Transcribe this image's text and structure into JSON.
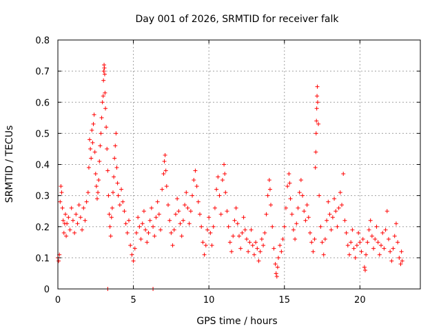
{
  "chart_data": {
    "type": "scatter",
    "title": "Day 001 of 2026, SRMTID for receiver falk",
    "xlabel": "GPS time / hours",
    "ylabel": "SRMTID / TECUs",
    "xlim": [
      0,
      24
    ],
    "ylim": [
      0,
      0.8
    ],
    "xticks": [
      0,
      5,
      10,
      15,
      20
    ],
    "xtick_labels": [
      "0",
      "5",
      "10",
      "15",
      "20"
    ],
    "yticks": [
      0,
      0.1,
      0.2,
      0.3,
      0.4,
      0.5,
      0.6,
      0.7,
      0.8
    ],
    "ytick_labels": [
      "0",
      "0.1",
      "0.2",
      "0.3",
      "0.4",
      "0.5",
      "0.6",
      "0.7",
      "0.8"
    ],
    "grid": true,
    "marker": "+",
    "color": "#ff0000",
    "series": [
      {
        "name": "SRMTID",
        "points": [
          [
            0.0,
            0.1
          ],
          [
            0.05,
            0.09
          ],
          [
            0.1,
            0.11
          ],
          [
            0.15,
            0.28
          ],
          [
            0.2,
            0.33
          ],
          [
            0.25,
            0.31
          ],
          [
            0.3,
            0.26
          ],
          [
            0.35,
            0.22
          ],
          [
            0.4,
            0.18
          ],
          [
            0.45,
            0.21
          ],
          [
            0.5,
            0.24
          ],
          [
            0.55,
            0.17
          ],
          [
            0.6,
            0.21
          ],
          [
            0.7,
            0.23
          ],
          [
            0.8,
            0.19
          ],
          [
            0.9,
            0.26
          ],
          [
            1.0,
            0.22
          ],
          [
            1.1,
            0.18
          ],
          [
            1.2,
            0.24
          ],
          [
            1.3,
            0.21
          ],
          [
            1.4,
            0.27
          ],
          [
            1.5,
            0.23
          ],
          [
            1.6,
            0.19
          ],
          [
            1.7,
            0.26
          ],
          [
            1.8,
            0.22
          ],
          [
            1.9,
            0.28
          ],
          [
            2.0,
            0.31
          ],
          [
            2.05,
            0.39
          ],
          [
            2.1,
            0.48
          ],
          [
            2.15,
            0.45
          ],
          [
            2.2,
            0.42
          ],
          [
            2.25,
            0.51
          ],
          [
            2.3,
            0.47
          ],
          [
            2.35,
            0.53
          ],
          [
            2.4,
            0.56
          ],
          [
            2.45,
            0.44
          ],
          [
            2.5,
            0.37
          ],
          [
            2.55,
            0.33
          ],
          [
            2.6,
            0.29
          ],
          [
            2.65,
            0.31
          ],
          [
            2.7,
            0.35
          ],
          [
            2.75,
            0.41
          ],
          [
            2.8,
            0.46
          ],
          [
            2.85,
            0.5
          ],
          [
            2.9,
            0.55
          ],
          [
            2.95,
            0.6
          ],
          [
            3.0,
            0.62
          ],
          [
            3.02,
            0.67
          ],
          [
            3.04,
            0.7
          ],
          [
            3.06,
            0.72
          ],
          [
            3.08,
            0.71
          ],
          [
            3.1,
            0.69
          ],
          [
            3.12,
            0.63
          ],
          [
            3.15,
            0.58
          ],
          [
            3.2,
            0.52
          ],
          [
            3.25,
            0.45
          ],
          [
            3.3,
            0.38
          ],
          [
            3.35,
            0.3
          ],
          [
            3.4,
            0.24
          ],
          [
            3.45,
            0.2
          ],
          [
            3.5,
            0.17
          ],
          [
            3.55,
            0.23
          ],
          [
            3.6,
            0.26
          ],
          [
            3.65,
            0.31
          ],
          [
            3.7,
            0.36
          ],
          [
            3.75,
            0.42
          ],
          [
            3.8,
            0.46
          ],
          [
            3.85,
            0.5
          ],
          [
            3.9,
            0.39
          ],
          [
            3.95,
            0.34
          ],
          [
            4.0,
            0.3
          ],
          [
            4.1,
            0.27
          ],
          [
            4.2,
            0.32
          ],
          [
            4.3,
            0.28
          ],
          [
            4.4,
            0.25
          ],
          [
            4.5,
            0.21
          ],
          [
            4.6,
            0.18
          ],
          [
            4.7,
            0.22
          ],
          [
            4.8,
            0.14
          ],
          [
            4.9,
            0.11
          ],
          [
            5.0,
            0.09
          ],
          [
            5.1,
            0.13
          ],
          [
            5.2,
            0.18
          ],
          [
            5.3,
            0.23
          ],
          [
            5.4,
            0.2
          ],
          [
            5.5,
            0.16
          ],
          [
            5.6,
            0.21
          ],
          [
            5.7,
            0.25
          ],
          [
            5.8,
            0.19
          ],
          [
            5.9,
            0.15
          ],
          [
            6.0,
            0.18
          ],
          [
            6.1,
            0.22
          ],
          [
            6.2,
            0.26
          ],
          [
            6.3,
            0.2
          ],
          [
            6.4,
            0.17
          ],
          [
            6.5,
            0.23
          ],
          [
            6.6,
            0.28
          ],
          [
            6.7,
            0.24
          ],
          [
            6.8,
            0.19
          ],
          [
            6.9,
            0.32
          ],
          [
            7.0,
            0.37
          ],
          [
            7.05,
            0.41
          ],
          [
            7.1,
            0.43
          ],
          [
            7.15,
            0.38
          ],
          [
            7.2,
            0.33
          ],
          [
            7.3,
            0.27
          ],
          [
            7.4,
            0.22
          ],
          [
            7.5,
            0.18
          ],
          [
            7.6,
            0.14
          ],
          [
            7.7,
            0.19
          ],
          [
            7.8,
            0.24
          ],
          [
            7.9,
            0.29
          ],
          [
            8.0,
            0.25
          ],
          [
            8.1,
            0.21
          ],
          [
            8.2,
            0.17
          ],
          [
            8.3,
            0.22
          ],
          [
            8.4,
            0.27
          ],
          [
            8.5,
            0.31
          ],
          [
            8.6,
            0.26
          ],
          [
            8.7,
            0.21
          ],
          [
            8.8,
            0.25
          ],
          [
            8.9,
            0.3
          ],
          [
            9.0,
            0.35
          ],
          [
            9.1,
            0.38
          ],
          [
            9.2,
            0.33
          ],
          [
            9.3,
            0.28
          ],
          [
            9.4,
            0.24
          ],
          [
            9.5,
            0.2
          ],
          [
            9.6,
            0.15
          ],
          [
            9.7,
            0.11
          ],
          [
            9.8,
            0.14
          ],
          [
            9.9,
            0.19
          ],
          [
            10.0,
            0.23
          ],
          [
            10.1,
            0.18
          ],
          [
            10.2,
            0.14
          ],
          [
            10.3,
            0.2
          ],
          [
            10.4,
            0.26
          ],
          [
            10.5,
            0.32
          ],
          [
            10.6,
            0.36
          ],
          [
            10.7,
            0.3
          ],
          [
            10.8,
            0.24
          ],
          [
            10.9,
            0.35
          ],
          [
            11.0,
            0.4
          ],
          [
            11.05,
            0.37
          ],
          [
            11.1,
            0.31
          ],
          [
            11.2,
            0.25
          ],
          [
            11.3,
            0.2
          ],
          [
            11.4,
            0.15
          ],
          [
            11.5,
            0.12
          ],
          [
            11.6,
            0.17
          ],
          [
            11.7,
            0.22
          ],
          [
            11.8,
            0.26
          ],
          [
            11.9,
            0.21
          ],
          [
            12.0,
            0.17
          ],
          [
            12.1,
            0.13
          ],
          [
            12.2,
            0.18
          ],
          [
            12.3,
            0.23
          ],
          [
            12.4,
            0.19
          ],
          [
            12.5,
            0.16
          ],
          [
            12.6,
            0.12
          ],
          [
            12.7,
            0.15
          ],
          [
            12.8,
            0.19
          ],
          [
            12.9,
            0.14
          ],
          [
            13.0,
            0.11
          ],
          [
            13.1,
            0.15
          ],
          [
            13.2,
            0.13
          ],
          [
            13.3,
            0.09
          ],
          [
            13.4,
            0.12
          ],
          [
            13.5,
            0.16
          ],
          [
            13.6,
            0.14
          ],
          [
            13.7,
            0.18
          ],
          [
            13.8,
            0.24
          ],
          [
            13.9,
            0.3
          ],
          [
            14.0,
            0.35
          ],
          [
            14.05,
            0.32
          ],
          [
            14.1,
            0.27
          ],
          [
            14.2,
            0.2
          ],
          [
            14.3,
            0.13
          ],
          [
            14.4,
            0.08
          ],
          [
            14.45,
            0.05
          ],
          [
            14.5,
            0.04
          ],
          [
            14.55,
            0.07
          ],
          [
            14.6,
            0.1
          ],
          [
            14.7,
            0.14
          ],
          [
            14.8,
            0.12
          ],
          [
            14.9,
            0.16
          ],
          [
            15.0,
            0.2
          ],
          [
            15.1,
            0.26
          ],
          [
            15.2,
            0.33
          ],
          [
            15.3,
            0.37
          ],
          [
            15.35,
            0.34
          ],
          [
            15.4,
            0.29
          ],
          [
            15.5,
            0.24
          ],
          [
            15.6,
            0.19
          ],
          [
            15.7,
            0.16
          ],
          [
            15.8,
            0.21
          ],
          [
            15.9,
            0.26
          ],
          [
            16.0,
            0.31
          ],
          [
            16.1,
            0.35
          ],
          [
            16.2,
            0.3
          ],
          [
            16.3,
            0.25
          ],
          [
            16.4,
            0.22
          ],
          [
            16.5,
            0.27
          ],
          [
            16.6,
            0.23
          ],
          [
            16.7,
            0.18
          ],
          [
            16.8,
            0.15
          ],
          [
            16.9,
            0.12
          ],
          [
            17.0,
            0.16
          ],
          [
            17.05,
            0.39
          ],
          [
            17.08,
            0.44
          ],
          [
            17.1,
            0.5
          ],
          [
            17.12,
            0.54
          ],
          [
            17.14,
            0.58
          ],
          [
            17.16,
            0.62
          ],
          [
            17.18,
            0.65
          ],
          [
            17.2,
            0.6
          ],
          [
            17.25,
            0.53
          ],
          [
            17.3,
            0.3
          ],
          [
            17.4,
            0.2
          ],
          [
            17.5,
            0.15
          ],
          [
            17.6,
            0.11
          ],
          [
            17.7,
            0.16
          ],
          [
            17.8,
            0.22
          ],
          [
            17.9,
            0.28
          ],
          [
            18.0,
            0.24
          ],
          [
            18.1,
            0.19
          ],
          [
            18.2,
            0.23
          ],
          [
            18.3,
            0.29
          ],
          [
            18.4,
            0.25
          ],
          [
            18.5,
            0.2
          ],
          [
            18.6,
            0.26
          ],
          [
            18.7,
            0.31
          ],
          [
            18.8,
            0.27
          ],
          [
            18.9,
            0.37
          ],
          [
            19.0,
            0.22
          ],
          [
            19.1,
            0.18
          ],
          [
            19.2,
            0.14
          ],
          [
            19.3,
            0.11
          ],
          [
            19.4,
            0.15
          ],
          [
            19.5,
            0.19
          ],
          [
            19.6,
            0.13
          ],
          [
            19.7,
            0.1
          ],
          [
            19.8,
            0.14
          ],
          [
            19.9,
            0.18
          ],
          [
            20.0,
            0.15
          ],
          [
            20.1,
            0.12
          ],
          [
            20.2,
            0.16
          ],
          [
            20.3,
            0.07
          ],
          [
            20.35,
            0.06
          ],
          [
            20.4,
            0.11
          ],
          [
            20.5,
            0.15
          ],
          [
            20.6,
            0.19
          ],
          [
            20.7,
            0.22
          ],
          [
            20.8,
            0.17
          ],
          [
            20.9,
            0.13
          ],
          [
            21.0,
            0.16
          ],
          [
            21.1,
            0.2
          ],
          [
            21.2,
            0.15
          ],
          [
            21.3,
            0.11
          ],
          [
            21.4,
            0.14
          ],
          [
            21.5,
            0.18
          ],
          [
            21.6,
            0.13
          ],
          [
            21.7,
            0.19
          ],
          [
            21.8,
            0.25
          ],
          [
            21.9,
            0.16
          ],
          [
            22.0,
            0.12
          ],
          [
            22.1,
            0.09
          ],
          [
            22.2,
            0.13
          ],
          [
            22.3,
            0.17
          ],
          [
            22.4,
            0.21
          ],
          [
            22.5,
            0.15
          ],
          [
            22.6,
            0.1
          ],
          [
            22.7,
            0.08
          ],
          [
            22.75,
            0.12
          ],
          [
            22.8,
            0.09
          ],
          [
            3.3,
            0.0
          ],
          [
            6.3,
            0.0
          ]
        ]
      }
    ]
  }
}
